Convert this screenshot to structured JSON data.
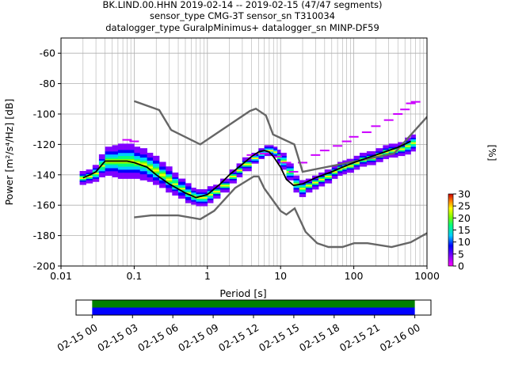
{
  "title_lines": [
    "BK.LIND.00.HHN   2019-02-14 -- 2019-02-15  (47/47 segments)",
    "sensor_type CMG-3T sensor_sn T310034",
    "datalogger_type GuralpMinimus+ datalogger_sn MINP-DF59"
  ],
  "colorbar": {
    "label": "[%]",
    "ticks": [
      "0",
      "5",
      "10",
      "15",
      "20",
      "25",
      "30"
    ],
    "range": [
      0,
      30
    ]
  },
  "chart_data": [
    {
      "type": "heatmap",
      "xlabel": "Period [s]",
      "ylabel": "Power [m²/s⁴/Hz] [dB]",
      "x_scale": "log",
      "xlim": [
        0.01,
        1000
      ],
      "ylim": [
        -200,
        -50
      ],
      "x_ticks": [
        "0.01",
        "0.1",
        "1",
        "10",
        "100",
        "1000"
      ],
      "x_tick_values": [
        0.01,
        0.1,
        1,
        10,
        100,
        1000
      ],
      "y_ticks": [
        "-200",
        "-180",
        "-160",
        "-140",
        "-120",
        "-100",
        "-80",
        "-60"
      ],
      "y_tick_values": [
        -200,
        -180,
        -160,
        -140,
        -120,
        -100,
        -80,
        -60
      ],
      "grid": true,
      "series": [
        {
          "role": "model-high",
          "color": "#666666",
          "x": [
            0.1,
            0.22,
            0.32,
            0.8,
            3.8,
            4.6,
            6.3,
            7.9,
            15.4,
            20,
            354.8,
            10000
          ],
          "y": [
            -91.5,
            -97.4,
            -110.5,
            -120,
            -98,
            -96.5,
            -101,
            -113.5,
            -120,
            -138,
            -126,
            -48.5
          ]
        },
        {
          "role": "model-low",
          "color": "#666666",
          "x": [
            0.1,
            0.17,
            0.4,
            0.8,
            1.24,
            2.4,
            4.3,
            5,
            6,
            10,
            12,
            15.6,
            21.9,
            31.6,
            45,
            70,
            101,
            154,
            328,
            600,
            10000
          ],
          "y": [
            -168,
            -166.7,
            -166.7,
            -169.2,
            -163.7,
            -148.6,
            -141.1,
            -141.1,
            -149,
            -163.8,
            -166.2,
            -162.1,
            -177.5,
            -185,
            -187.5,
            -187.5,
            -185,
            -185,
            -187.5,
            -184.4,
            -151.5
          ]
        },
        {
          "role": "mode",
          "color": "#000000",
          "x": [
            0.02,
            0.025,
            0.03,
            0.04,
            0.06,
            0.08,
            0.1,
            0.15,
            0.2,
            0.3,
            0.5,
            0.7,
            1,
            1.5,
            2,
            3,
            4,
            5,
            6,
            7,
            8,
            10,
            12,
            15,
            20,
            30,
            50,
            70,
            100,
            150,
            200,
            300,
            400,
            600
          ],
          "y": [
            -142,
            -140,
            -138,
            -131,
            -131,
            -131,
            -132,
            -135,
            -140,
            -146,
            -152,
            -155,
            -153,
            -146,
            -140,
            -133,
            -128,
            -125,
            -124,
            -125,
            -128,
            -135,
            -143,
            -147,
            -146,
            -142,
            -138,
            -135,
            -132,
            -129,
            -127,
            -124,
            -122,
            -118
          ]
        }
      ],
      "pdf_cloud": {
        "x": [
          0.018,
          0.022,
          0.027,
          0.033,
          0.04,
          0.05,
          0.06,
          0.07,
          0.08,
          0.1,
          0.12,
          0.15,
          0.18,
          0.22,
          0.27,
          0.33,
          0.4,
          0.5,
          0.6,
          0.7,
          0.8,
          1,
          1.2,
          1.5,
          2,
          2.5,
          3,
          4,
          5,
          6,
          7,
          8,
          9,
          10,
          12,
          15,
          18,
          22,
          27,
          33,
          40,
          50,
          60,
          70,
          80,
          100,
          120,
          150,
          200,
          250,
          300,
          400,
          500,
          600,
          700
        ],
        "center": [
          -142,
          -141,
          -139,
          -134,
          -131,
          -131,
          -131,
          -131,
          -131,
          -132,
          -133,
          -135,
          -137,
          -140,
          -143,
          -146,
          -149,
          -152,
          -154,
          -155,
          -155,
          -153,
          -151,
          -147,
          -141,
          -137,
          -133,
          -129,
          -126,
          -124,
          -124,
          -125,
          -128,
          -131,
          -138,
          -146,
          -149,
          -147,
          -145,
          -143,
          -141,
          -138,
          -136,
          -135,
          -134,
          -132,
          -130,
          -129,
          -127,
          -125,
          -124,
          -123,
          -121,
          -119,
          -117
        ],
        "spread": [
          4,
          4,
          5,
          7,
          9,
          10,
          11,
          11,
          11,
          10,
          10,
          9,
          9,
          8,
          8,
          7,
          6,
          6,
          5,
          5,
          5,
          5,
          4,
          4,
          4,
          4,
          4,
          3,
          3,
          3,
          3,
          3,
          4,
          5,
          5,
          5,
          5,
          4,
          4,
          4,
          4,
          4,
          4,
          4,
          4,
          4,
          4,
          4,
          4,
          4,
          4,
          4,
          5,
          5,
          6
        ],
        "outlier_x": [
          0.08,
          0.1,
          4,
          6,
          9,
          12,
          15,
          20,
          30,
          40,
          60,
          80,
          100,
          150,
          200,
          300,
          400,
          500,
          600,
          700
        ],
        "outlier_y": [
          -117,
          -118,
          -127,
          -126,
          -128,
          -132,
          -138,
          -132,
          -127,
          -124,
          -121,
          -118,
          -115,
          -112,
          -108,
          -104,
          -100,
          -97,
          -93,
          -92
        ]
      }
    },
    {
      "type": "timeline",
      "x_ticks": [
        "02-15 00",
        "02-15 03",
        "02-15 06",
        "02-15 09",
        "02-15 12",
        "02-15 15",
        "02-15 18",
        "02-15 21",
        "02-16 00"
      ],
      "x_tick_hours": [
        0,
        3,
        6,
        9,
        12,
        15,
        18,
        21,
        24
      ],
      "xlim_hours": [
        -1.2,
        25.2
      ],
      "bars": [
        {
          "color": "#008000",
          "start_hours": 0,
          "end_hours": 24
        },
        {
          "color": "#0000ff",
          "start_hours": 0,
          "end_hours": 24
        }
      ]
    }
  ]
}
